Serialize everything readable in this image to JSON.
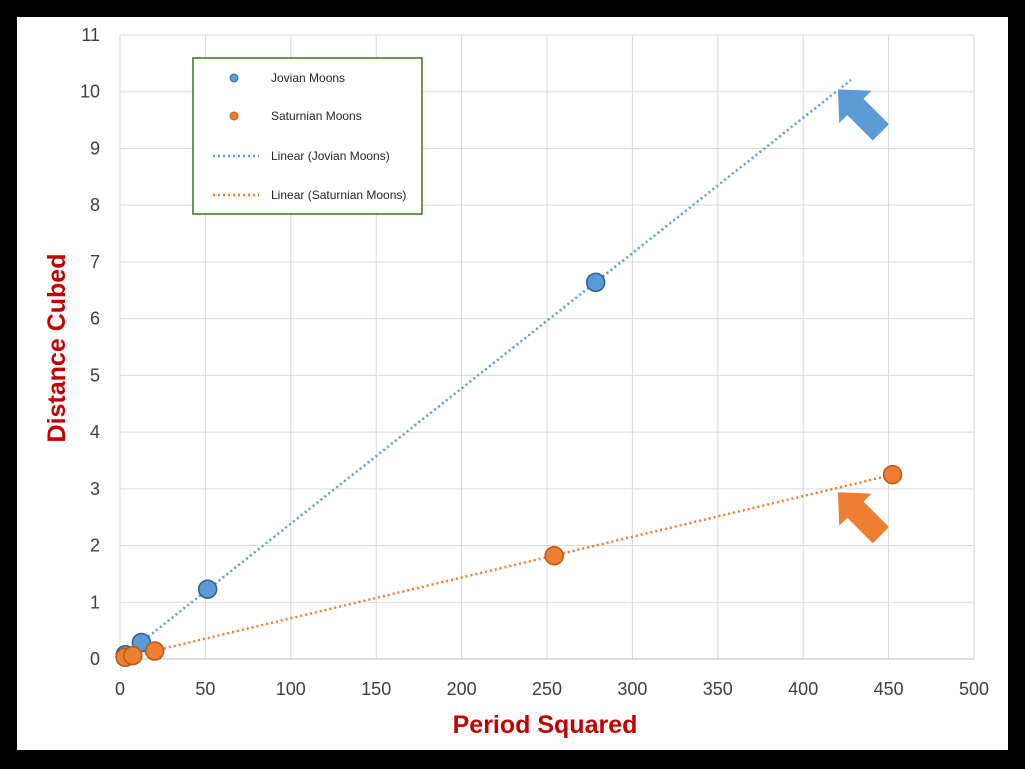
{
  "chart_data": {
    "type": "scatter",
    "title": "",
    "xlabel": "Period Squared",
    "ylabel": "Distance Cubed",
    "xlim": [
      0,
      500
    ],
    "ylim": [
      0,
      11
    ],
    "x_ticks": [
      0,
      50,
      100,
      150,
      200,
      250,
      300,
      350,
      400,
      450,
      500
    ],
    "y_ticks": [
      0,
      1,
      2,
      3,
      4,
      5,
      6,
      7,
      8,
      9,
      10,
      11
    ],
    "grid": true,
    "legend_position": "top-left",
    "series": [
      {
        "name": "Jovian Moons",
        "color": "#5b9bd5",
        "points": [
          {
            "x": 3.1,
            "y": 0.075
          },
          {
            "x": 12.5,
            "y": 0.29
          },
          {
            "x": 51.3,
            "y": 1.23
          },
          {
            "x": 278.5,
            "y": 6.64
          }
        ]
      },
      {
        "name": "Saturnian Moons",
        "color": "#ed7d31",
        "points": [
          {
            "x": 3.0,
            "y": 0.03
          },
          {
            "x": 7.5,
            "y": 0.06
          },
          {
            "x": 20.3,
            "y": 0.14
          },
          {
            "x": 254.2,
            "y": 1.82
          },
          {
            "x": 452.3,
            "y": 3.25
          }
        ]
      }
    ],
    "trendlines": [
      {
        "name": "Linear (Jovian Moons)",
        "color": "#5b9bd5",
        "x_start": 5,
        "x_end": 428,
        "slope": 0.02385,
        "intercept": 0.0
      },
      {
        "name": "Linear (Saturnian Moons)",
        "color": "#ed7d31",
        "x_start": 3,
        "x_end": 455,
        "slope": 0.00718,
        "intercept": 0.0
      }
    ],
    "annotations": [
      {
        "type": "arrow",
        "color": "#5b9bd5",
        "points_to": {
          "x": 420,
          "y": 10.05
        }
      },
      {
        "type": "arrow",
        "color": "#ed7d31",
        "points_to": {
          "x": 420,
          "y": 2.95
        }
      }
    ]
  }
}
